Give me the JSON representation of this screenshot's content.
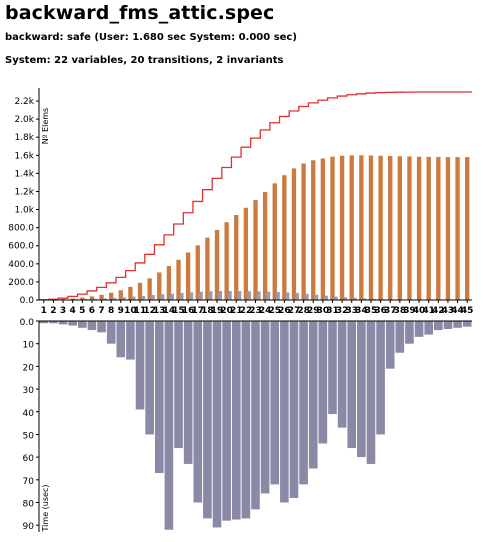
{
  "header": {
    "title": "backward_fms_attic.spec",
    "result_line": "backward: safe (User: 1.680 sec System: 0.000 sec)",
    "system_line": "System: 22 variables, 20 transitions, 2 invariants"
  },
  "colors": {
    "elements_bar": "#cc7a3f",
    "new_elements_bar": "#9b9bb0",
    "time_bar": "#8a8aa6",
    "cumulative_line": "#e03030"
  },
  "chart_data": [
    {
      "type": "bar",
      "ylabel": "Nº Elems",
      "ylim": [
        0,
        2300
      ],
      "yticks": [
        "0.0",
        "200.0",
        "400.0",
        "600.0",
        "800.0",
        "1.0k",
        "1.2k",
        "1.4k",
        "1.6k",
        "1.8k",
        "2.0k",
        "2.2k"
      ],
      "ytick_values": [
        0,
        200,
        400,
        600,
        800,
        1000,
        1200,
        1400,
        1600,
        1800,
        2000,
        2200
      ],
      "categories": [
        "1",
        "2",
        "3",
        "4",
        "5",
        "6",
        "7",
        "8",
        "9",
        "10",
        "11",
        "12",
        "13",
        "14",
        "15",
        "16",
        "17",
        "18",
        "19",
        "20",
        "21",
        "22",
        "23",
        "24",
        "25",
        "26",
        "27",
        "28",
        "29",
        "30",
        "31",
        "32",
        "33",
        "34",
        "35",
        "36",
        "37",
        "38",
        "39",
        "40",
        "41",
        "42",
        "43",
        "44",
        "45"
      ],
      "series": [
        {
          "kind": "bar",
          "values": [
            2,
            5,
            10,
            17,
            27,
            40,
            57,
            80,
            108,
            145,
            190,
            240,
            305,
            375,
            445,
            525,
            605,
            690,
            775,
            860,
            940,
            1020,
            1105,
            1195,
            1290,
            1380,
            1455,
            1510,
            1545,
            1565,
            1585,
            1595,
            1600,
            1600,
            1598,
            1595,
            1593,
            1590,
            1588,
            1585,
            1583,
            1582,
            1580,
            1580,
            1580
          ]
        },
        {
          "kind": "bar-secondary",
          "values": [
            2,
            3,
            5,
            8,
            10,
            14,
            18,
            23,
            30,
            38,
            46,
            55,
            63,
            70,
            78,
            85,
            92,
            97,
            100,
            100,
            99,
            97,
            95,
            92,
            88,
            82,
            76,
            68,
            58,
            48,
            38,
            30,
            24,
            18,
            12,
            8,
            5,
            3,
            2,
            1,
            1,
            1,
            0,
            0,
            0
          ]
        },
        {
          "kind": "line",
          "values": [
            2,
            8,
            20,
            40,
            65,
            100,
            140,
            190,
            250,
            325,
            410,
            505,
            610,
            720,
            840,
            965,
            1090,
            1220,
            1345,
            1465,
            1580,
            1690,
            1790,
            1880,
            1960,
            2030,
            2090,
            2140,
            2180,
            2210,
            2235,
            2255,
            2270,
            2280,
            2288,
            2293,
            2296,
            2298,
            2299,
            2300,
            2300,
            2300,
            2300,
            2300,
            2300
          ]
        }
      ]
    },
    {
      "type": "bar",
      "ylabel": "Time (usec)",
      "ylim": [
        0,
        93
      ],
      "yticks": [
        "0.0",
        "10",
        "20",
        "30",
        "40",
        "50",
        "60",
        "70",
        "80",
        "90"
      ],
      "ytick_values": [
        0,
        10,
        20,
        30,
        40,
        50,
        60,
        70,
        80,
        90
      ],
      "categories": [
        "1",
        "2",
        "3",
        "4",
        "5",
        "6",
        "7",
        "8",
        "9",
        "10",
        "11",
        "12",
        "13",
        "14",
        "15",
        "16",
        "17",
        "18",
        "19",
        "20",
        "21",
        "22",
        "23",
        "24",
        "25",
        "26",
        "27",
        "28",
        "29",
        "30",
        "31",
        "32",
        "33",
        "34",
        "35",
        "36",
        "37",
        "38",
        "39",
        "40",
        "41",
        "42",
        "43",
        "44",
        "45"
      ],
      "values": [
        1,
        1,
        1.5,
        2,
        3,
        4,
        5,
        10,
        16,
        17,
        39,
        50,
        67,
        92,
        56,
        63,
        80,
        87,
        91,
        88,
        87.5,
        87,
        83,
        76,
        72,
        80,
        78,
        72,
        65,
        54,
        41,
        47,
        56,
        60,
        63,
        50,
        21,
        14,
        10,
        7,
        6,
        4,
        3.5,
        3,
        2.5
      ]
    }
  ]
}
